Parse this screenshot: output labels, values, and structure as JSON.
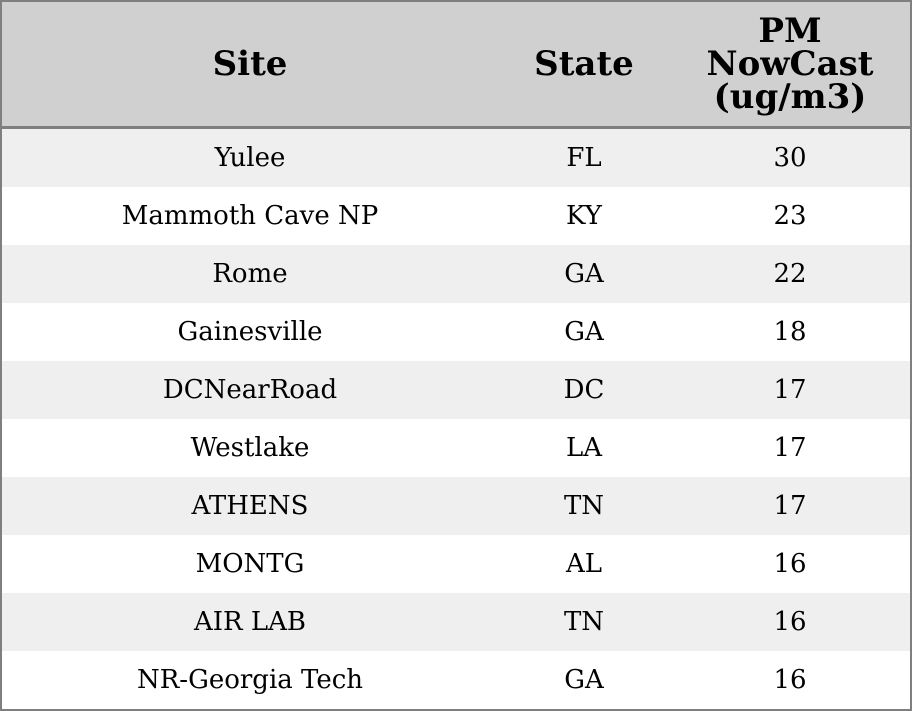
{
  "chart_data": {
    "type": "table",
    "columns": [
      "Site",
      "State",
      "PM NowCast (ug/m3)"
    ],
    "column_lines": [
      [
        "Site"
      ],
      [
        "State"
      ],
      [
        "PM",
        "NowCast",
        "(ug/m3)"
      ]
    ],
    "rows": [
      [
        "Yulee",
        "FL",
        "30"
      ],
      [
        "Mammoth Cave NP",
        "KY",
        "23"
      ],
      [
        "Rome",
        "GA",
        "22"
      ],
      [
        "Gainesville",
        "GA",
        "18"
      ],
      [
        "DCNearRoad",
        "DC",
        "17"
      ],
      [
        "Westlake",
        "LA",
        "17"
      ],
      [
        "ATHENS",
        "TN",
        "17"
      ],
      [
        "MONTG",
        "AL",
        "16"
      ],
      [
        "AIR LAB",
        "TN",
        "16"
      ],
      [
        "NR-Georgia Tech",
        "GA",
        "16"
      ]
    ],
    "header_color": "#d0d0d0",
    "stripe_color": "#efefef",
    "border_color": "#7f7f7f"
  }
}
